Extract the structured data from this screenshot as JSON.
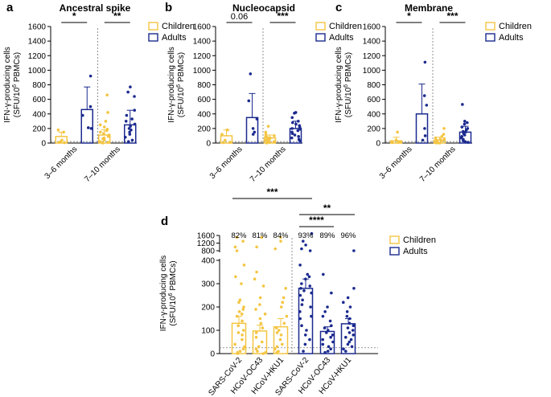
{
  "colors": {
    "children": "#F4C542",
    "adults": "#1B2A8F",
    "axis": "#000000",
    "dotted": "#777777"
  },
  "legend": {
    "children": "Children",
    "adults": "Adults"
  },
  "y_axis_label": {
    "line1": "IFN-γ-producing cells",
    "line2_pre": "(SFU/10",
    "line2_sup": "6",
    "line2_post": " PBMCs)"
  },
  "chart_data": [
    {
      "id": "a",
      "type": "bar",
      "letter": "a",
      "title": "Ancestral spike",
      "groups": [
        "3–6 months",
        "7–10 months"
      ],
      "ylim": [
        0,
        1600
      ],
      "yticks": [
        0,
        200,
        400,
        600,
        800,
        1000,
        1200,
        1400,
        1600
      ],
      "series": [
        {
          "name": "Children",
          "group_values": [
            {
              "mean": 90,
              "err": 60,
              "points": [
                180,
                150,
                40,
                20,
                10,
                5
              ]
            },
            {
              "mean": 110,
              "err": 70,
              "points": [
                660,
                420,
                300,
                250,
                220,
                190,
                170,
                150,
                130,
                110,
                90,
                70,
                60,
                40,
                20,
                10,
                5,
                0
              ]
            }
          ]
        },
        {
          "name": "Adults",
          "group_values": [
            {
              "mean": 460,
              "err": 310,
              "points": [
                920,
                500,
                380,
                210,
                200
              ]
            },
            {
              "mean": 250,
              "err": 200,
              "points": [
                770,
                700,
                640,
                450,
                380,
                330,
                300,
                260,
                230,
                200,
                180,
                150,
                120,
                80,
                40,
                20
              ]
            }
          ]
        }
      ],
      "comparisons": [
        {
          "group": 0,
          "label": "*"
        },
        {
          "group": 1,
          "label": "**"
        }
      ]
    },
    {
      "id": "b",
      "type": "bar",
      "letter": "b",
      "title": "Nucleocapsid",
      "groups": [
        "3–6 months",
        "7–10 months"
      ],
      "ylim": [
        0,
        1600
      ],
      "yticks": [
        0,
        200,
        400,
        600,
        800,
        1000,
        1200,
        1400,
        1600
      ],
      "series": [
        {
          "name": "Children",
          "group_values": [
            {
              "mean": 100,
              "err": 80,
              "points": [
                180,
                120,
                40,
                10,
                5
              ]
            },
            {
              "mean": 70,
              "err": 40,
              "points": [
                230,
                150,
                120,
                100,
                90,
                80,
                70,
                60,
                50,
                40,
                30,
                20,
                10,
                5,
                0
              ]
            }
          ]
        },
        {
          "name": "Adults",
          "group_values": [
            {
              "mean": 350,
              "err": 330,
              "points": [
                950,
                580,
                330,
                200,
                150,
                120
              ]
            },
            {
              "mean": 200,
              "err": 100,
              "points": [
                420,
                410,
                350,
                300,
                280,
                260,
                240,
                220,
                200,
                190,
                170,
                150,
                130,
                110,
                90,
                70,
                50,
                30
              ]
            }
          ]
        }
      ],
      "comparisons": [
        {
          "group": 0,
          "label": "0.06"
        },
        {
          "group": 1,
          "label": "***"
        }
      ]
    },
    {
      "id": "c",
      "type": "bar",
      "letter": "c",
      "title": "Membrane",
      "groups": [
        "3–6 months",
        "7–10 months"
      ],
      "ylim": [
        0,
        1600
      ],
      "yticks": [
        0,
        200,
        400,
        600,
        800,
        1000,
        1200,
        1400,
        1600
      ],
      "series": [
        {
          "name": "Children",
          "group_values": [
            {
              "mean": 30,
              "err": 50,
              "points": [
                150,
                40,
                20,
                10,
                5
              ]
            },
            {
              "mean": 40,
              "err": 40,
              "points": [
                200,
                120,
                90,
                70,
                60,
                50,
                40,
                30,
                20,
                15,
                10,
                5,
                0,
                0
              ]
            }
          ]
        },
        {
          "name": "Adults",
          "group_values": [
            {
              "mean": 400,
              "err": 410,
              "points": [
                1110,
                650,
                520,
                200,
                100,
                40
              ]
            },
            {
              "mean": 150,
              "err": 80,
              "points": [
                530,
                300,
                280,
                260,
                220,
                200,
                180,
                160,
                150,
                130,
                110,
                90,
                70,
                50,
                30,
                20,
                10
              ]
            }
          ]
        }
      ],
      "comparisons": [
        {
          "group": 0,
          "label": "*"
        },
        {
          "group": 1,
          "label": "***"
        }
      ]
    },
    {
      "id": "d",
      "type": "bar",
      "letter": "d",
      "categories": [
        "SARS-CoV-2",
        "HCoV-OC43",
        "HCoV-HKU1",
        "SARS-CoV-2",
        "HCoV-OC43",
        "HCoV-HKU1"
      ],
      "percent_labels": [
        "82%",
        "81%",
        "84%",
        "93%",
        "89%",
        "96%"
      ],
      "yticks_lower": [
        0,
        100,
        200,
        300,
        400
      ],
      "yticks_upper": [
        800,
        1200,
        1600
      ],
      "series": [
        {
          "name": "Children",
          "bars": [
            {
              "mean": 130,
              "err": 30,
              "points": [
                1500,
                1300,
                1000,
                800,
                380,
                330,
                300,
                230,
                220,
                200,
                190,
                180,
                170,
                160,
                140,
                120,
                100,
                90,
                80,
                60,
                40,
                30,
                20,
                10,
                5,
                0
              ]
            },
            {
              "mean": 97,
              "err": 25,
              "points": [
                1500,
                1000,
                350,
                320,
                290,
                240,
                210,
                190,
                170,
                150,
                130,
                110,
                90,
                70,
                50,
                30,
                20,
                10,
                5,
                0
              ]
            },
            {
              "mean": 115,
              "err": 35,
              "points": [
                1500,
                1300,
                900,
                280,
                240,
                220,
                200,
                160,
                130,
                110,
                100,
                90,
                80,
                60,
                40,
                30,
                20,
                10,
                5
              ]
            }
          ]
        },
        {
          "name": "Adults",
          "bars": [
            {
              "mean": 280,
              "err": 40,
              "points": [
                1700,
                1300,
                1100,
                900,
                800,
                380,
                340,
                330,
                320,
                300,
                290,
                280,
                270,
                260,
                250,
                230,
                210,
                200,
                180,
                160,
                150,
                120,
                100,
                80,
                60,
                40,
                10
              ]
            },
            {
              "mean": 95,
              "err": 20,
              "points": [
                340,
                260,
                200,
                180,
                160,
                140,
                120,
                110,
                100,
                90,
                80,
                70,
                60,
                50,
                40,
                30,
                20,
                10,
                5
              ]
            },
            {
              "mean": 128,
              "err": 22,
              "points": [
                800,
                280,
                240,
                220,
                200,
                180,
                160,
                150,
                130,
                120,
                110,
                100,
                90,
                80,
                70,
                60,
                50,
                40,
                30,
                20,
                10
              ]
            }
          ]
        }
      ],
      "comparisons": [
        {
          "from": 0,
          "to": 3,
          "label": "***"
        },
        {
          "from": 3,
          "to": 5,
          "label": "**"
        },
        {
          "from": 3,
          "to": 4,
          "label": "****"
        }
      ]
    }
  ]
}
